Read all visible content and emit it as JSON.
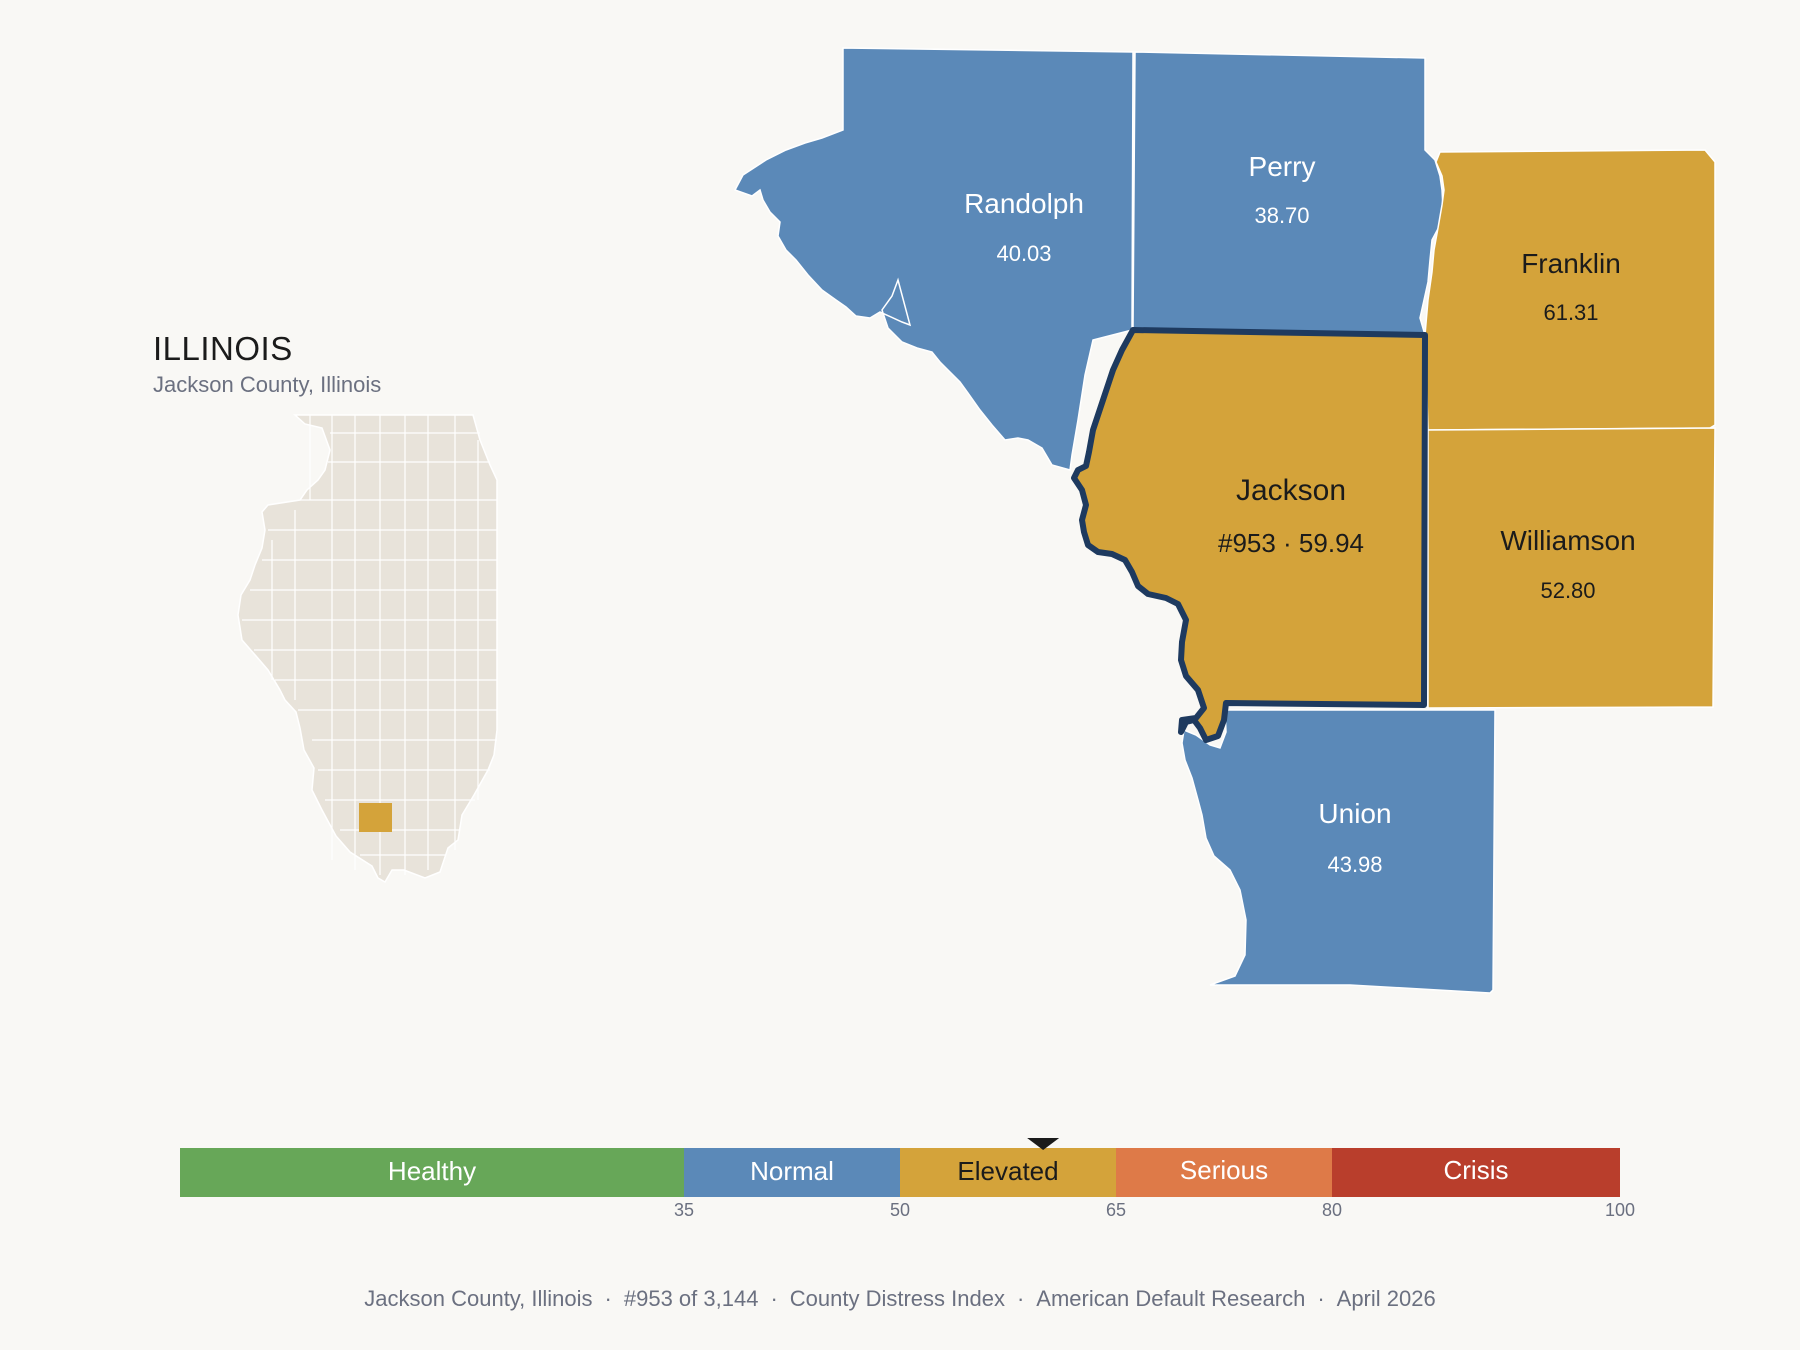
{
  "state": {
    "title": "ILLINOIS",
    "subtitle": "Jackson County, Illinois"
  },
  "colors": {
    "normal": "#5b89b8",
    "elevated": "#d4a33a",
    "highlight_border": "#1e3a5f",
    "inset_fill": "#e8e3da",
    "healthy": "#67a758",
    "serious": "#de7a48",
    "crisis": "#b93e2c"
  },
  "counties": [
    {
      "name": "Randolph",
      "value": "40.03",
      "category": "normal"
    },
    {
      "name": "Perry",
      "value": "38.70",
      "category": "normal"
    },
    {
      "name": "Franklin",
      "value": "61.31",
      "category": "elevated"
    },
    {
      "name": "Jackson",
      "value": "#953 · 59.94",
      "category": "elevated",
      "highlighted": true
    },
    {
      "name": "Williamson",
      "value": "52.80",
      "category": "elevated"
    },
    {
      "name": "Union",
      "value": "43.98",
      "category": "normal"
    }
  ],
  "scale": {
    "bands": [
      {
        "label": "Healthy",
        "from": 0,
        "to": 35
      },
      {
        "label": "Normal",
        "from": 35,
        "to": 50
      },
      {
        "label": "Elevated",
        "from": 50,
        "to": 65
      },
      {
        "label": "Serious",
        "from": 65,
        "to": 80
      },
      {
        "label": "Crisis",
        "from": 80,
        "to": 100
      }
    ],
    "ticks": [
      "35",
      "50",
      "65",
      "80",
      "100"
    ],
    "marker_value": 59.94
  },
  "footer": {
    "items": [
      "Jackson County, Illinois",
      "#953 of 3,144",
      "County Distress Index",
      "American Default Research",
      "April 2026"
    ],
    "separator": "·"
  }
}
